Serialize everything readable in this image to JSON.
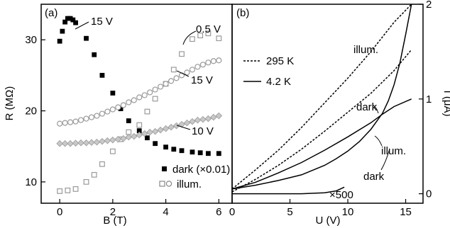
{
  "chart_data": [
    {
      "panel_label": "(a)",
      "type": "scatter",
      "xlabel": "B (T)",
      "ylabel": "R (MΩ)",
      "xlim": [
        -0.7,
        6.5
      ],
      "ylim": [
        7,
        35
      ],
      "xticks": [
        0,
        2,
        4,
        6
      ],
      "yticks": [
        10,
        20,
        30
      ],
      "legend_placement": "bottom-right",
      "legend": [
        {
          "label": "dark (×0.01)",
          "marker": "filled-square"
        },
        {
          "label": "illum.",
          "marker": "open-square-and-circle"
        }
      ],
      "annotations": [
        "15 V",
        "0.5 V",
        "15 V",
        "10 V"
      ],
      "series": [
        {
          "marker": "filled-square",
          "color": "#000000",
          "x": [
            0.0,
            0.1,
            0.2,
            0.3,
            0.4,
            0.5,
            0.6,
            1.0,
            1.3,
            1.6,
            2.0,
            2.3,
            2.6,
            3.0,
            3.3,
            3.6,
            4.0,
            4.3,
            4.6,
            5.0,
            5.3,
            5.6,
            6.0
          ],
          "y": [
            29.8,
            31.2,
            32.5,
            33.0,
            33.0,
            32.8,
            32.4,
            30.2,
            27.9,
            25.0,
            22.5,
            20.3,
            18.6,
            17.2,
            16.2,
            15.4,
            14.9,
            14.6,
            14.4,
            14.2,
            14.1,
            14.0,
            14.0
          ]
        },
        {
          "marker": "open-square",
          "color": "#9a9a9a",
          "x": [
            0.0,
            0.3,
            0.6,
            1.0,
            1.3,
            1.6,
            2.0,
            2.3,
            2.6,
            3.0,
            3.3,
            3.6,
            4.0,
            4.3,
            4.6,
            5.0,
            5.3,
            5.6,
            6.0
          ],
          "y": [
            8.7,
            8.8,
            9.0,
            10.0,
            11.0,
            12.5,
            14.3,
            16.0,
            17.0,
            18.0,
            19.9,
            21.7,
            23.8,
            25.8,
            28.0,
            30.1,
            30.6,
            30.9,
            30.2
          ]
        },
        {
          "marker": "open-circle",
          "color": "#9a9a9a",
          "x": [
            0.0,
            0.2,
            0.4,
            0.6,
            0.8,
            1.0,
            1.2,
            1.4,
            1.6,
            1.8,
            2.0,
            2.2,
            2.4,
            2.6,
            2.8,
            3.0,
            3.2,
            3.4,
            3.6,
            3.8,
            4.0,
            4.2,
            4.4,
            4.6,
            4.8,
            5.0,
            5.2,
            5.4,
            5.6,
            5.8,
            6.0
          ],
          "y": [
            18.2,
            18.3,
            18.4,
            18.5,
            18.7,
            18.9,
            19.1,
            19.3,
            19.6,
            19.9,
            20.2,
            20.5,
            20.8,
            21.2,
            21.5,
            21.9,
            22.2,
            22.6,
            23.0,
            23.4,
            23.8,
            24.2,
            24.6,
            25.0,
            25.4,
            25.8,
            26.2,
            26.5,
            26.8,
            27.0,
            27.1
          ]
        },
        {
          "marker": "diamond",
          "color": "#9a9a9a",
          "x": [
            0.0,
            0.2,
            0.4,
            0.6,
            0.8,
            1.0,
            1.2,
            1.4,
            1.6,
            1.8,
            2.0,
            2.2,
            2.4,
            2.6,
            2.8,
            3.0,
            3.2,
            3.4,
            3.6,
            3.8,
            4.0,
            4.2,
            4.4,
            4.6,
            4.8,
            5.0,
            5.2,
            5.4,
            5.6,
            5.8,
            6.0
          ],
          "y": [
            15.4,
            15.4,
            15.4,
            15.45,
            15.5,
            15.5,
            15.55,
            15.6,
            15.7,
            15.8,
            15.9,
            16.0,
            16.1,
            16.3,
            16.4,
            16.6,
            16.8,
            17.0,
            17.1,
            17.3,
            17.5,
            17.7,
            17.9,
            18.1,
            18.3,
            18.5,
            18.7,
            18.8,
            18.9,
            19.1,
            19.3
          ]
        }
      ]
    },
    {
      "panel_label": "(b)",
      "type": "line",
      "xlabel": "U (V)",
      "ylabel": "I (μA)",
      "xlim": [
        0,
        16.5
      ],
      "ylim": [
        -0.1,
        2.0
      ],
      "xticks": [
        0,
        5,
        10,
        15
      ],
      "yticks": [
        0,
        1,
        2
      ],
      "legend_placement": "top-left",
      "legend": [
        {
          "label": "295 K",
          "style": "dashed"
        },
        {
          "label": "4.2 K",
          "style": "solid"
        }
      ],
      "annotations": [
        "illum.",
        "dark",
        "illum.",
        "dark",
        "×500"
      ],
      "series": [
        {
          "style": "dashed",
          "color": "#000000",
          "x": [
            0,
            2,
            4,
            6,
            8,
            10,
            12,
            14,
            15.5
          ],
          "y": [
            0.05,
            0.25,
            0.46,
            0.7,
            0.96,
            1.22,
            1.5,
            1.81,
            2.0
          ]
        },
        {
          "style": "dashed",
          "color": "#000000",
          "x": [
            0,
            2,
            4,
            6,
            8,
            10,
            12,
            14,
            15.5
          ],
          "y": [
            0.02,
            0.15,
            0.3,
            0.47,
            0.66,
            0.86,
            1.06,
            1.3,
            1.52
          ]
        },
        {
          "style": "solid",
          "color": "#000000",
          "x": [
            0,
            2,
            4,
            6,
            8,
            10,
            12,
            13,
            14,
            15.5
          ],
          "y": [
            0.05,
            0.12,
            0.22,
            0.33,
            0.46,
            0.6,
            0.75,
            0.84,
            0.92,
            1.0
          ]
        },
        {
          "style": "solid",
          "color": "#000000",
          "x": [
            0,
            2,
            4,
            6,
            8,
            9,
            10,
            11,
            12,
            13,
            13.5,
            14,
            14.5,
            15,
            15.5
          ],
          "y": [
            0.05,
            0.09,
            0.14,
            0.2,
            0.3,
            0.37,
            0.45,
            0.55,
            0.68,
            0.85,
            0.98,
            1.15,
            1.38,
            1.68,
            2.0
          ]
        },
        {
          "style": "solid",
          "color": "#000000",
          "x": [
            0,
            2,
            4,
            6,
            8,
            9,
            9.7
          ],
          "y": [
            0.0,
            0.0,
            0.0,
            0.0,
            0.01,
            0.03,
            0.07
          ]
        }
      ]
    }
  ]
}
